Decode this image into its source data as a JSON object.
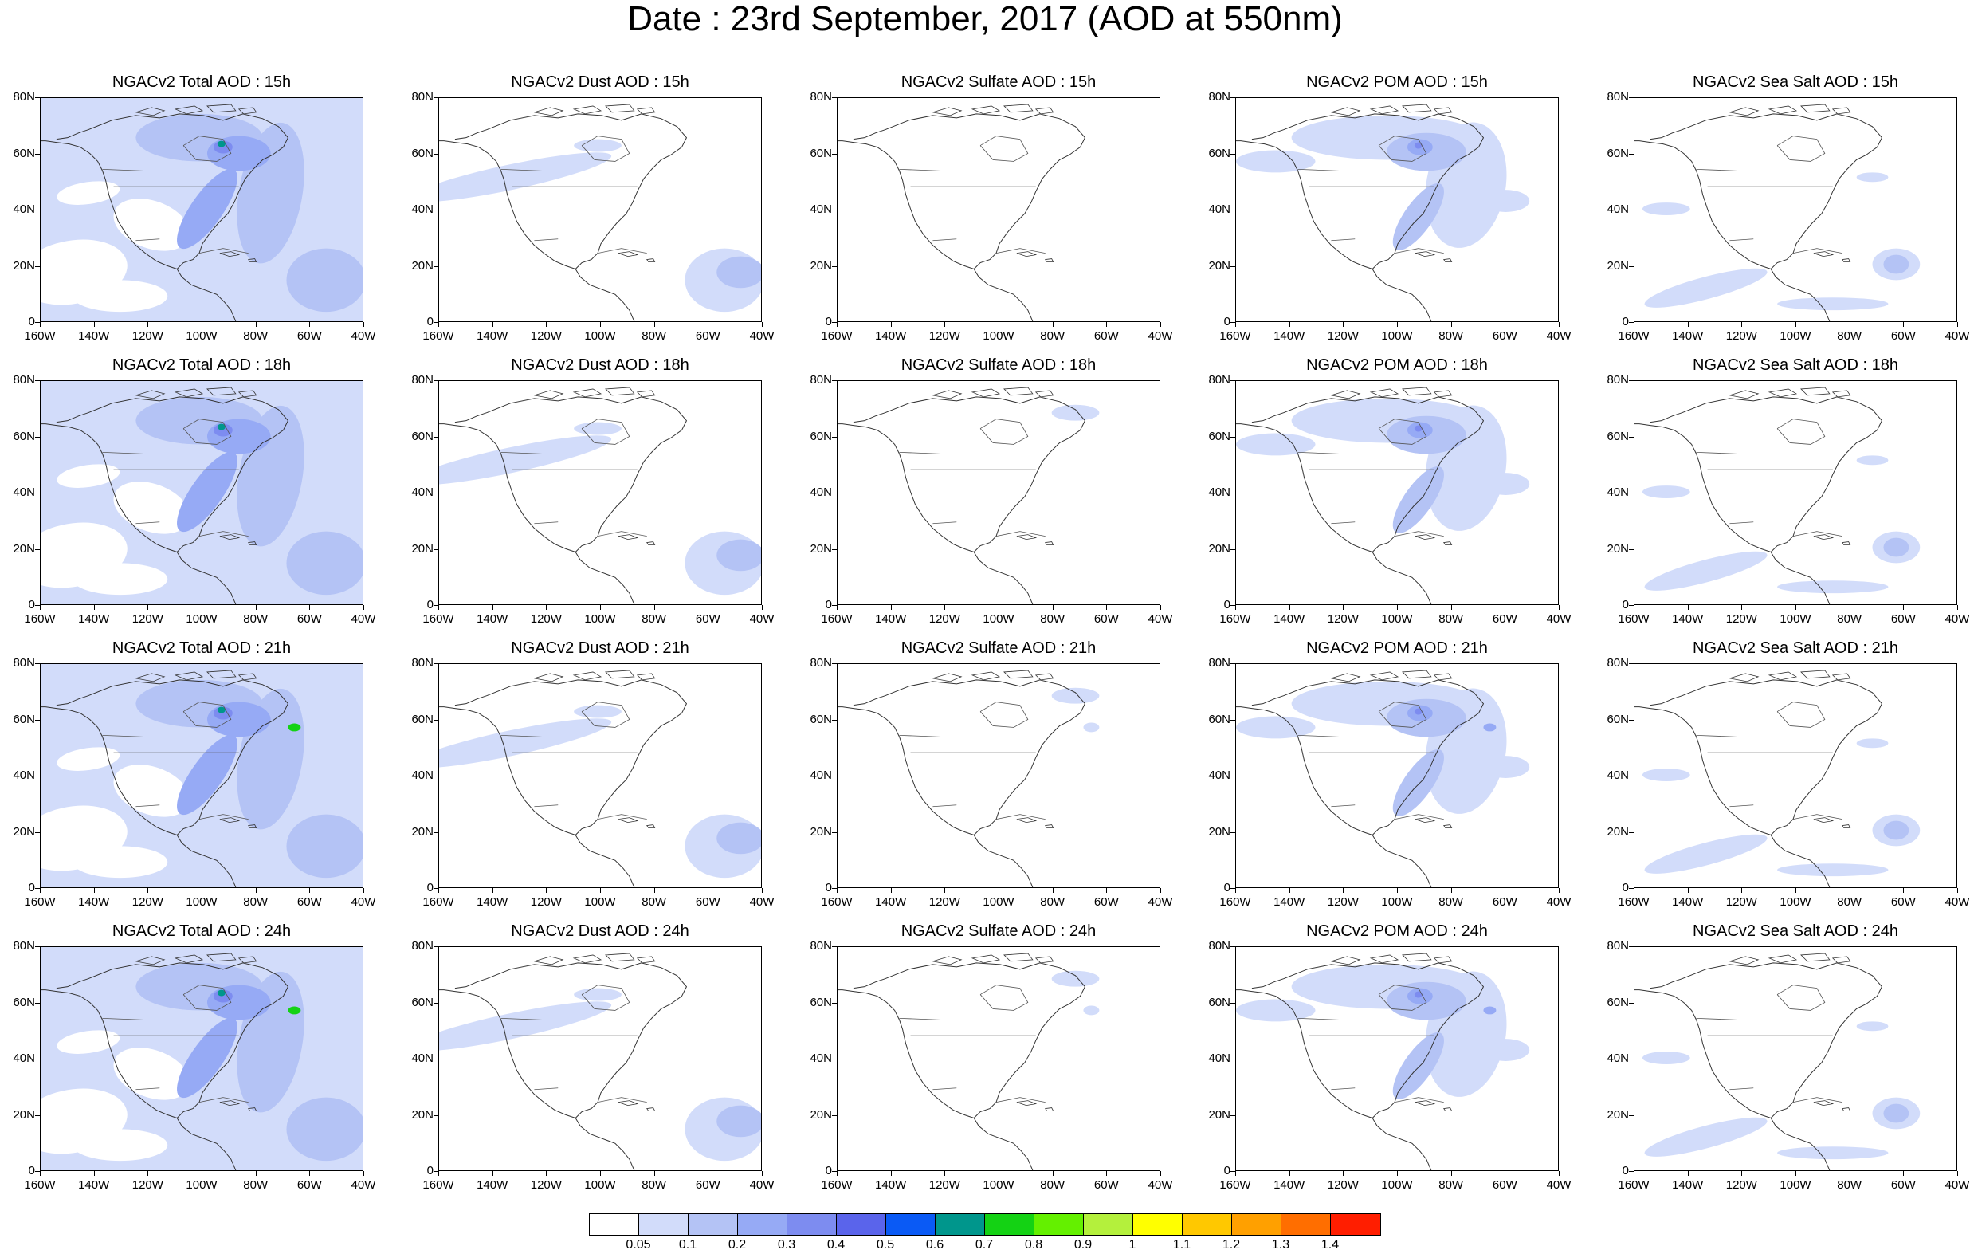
{
  "figure": {
    "title": "Date : 23rd September, 2017 (AOD at 550nm)"
  },
  "axes": {
    "y_ticks": [
      "80N",
      "60N",
      "40N",
      "20N",
      "0"
    ],
    "x_ticks": [
      "160W",
      "140W",
      "120W",
      "100W",
      "80W",
      "60W",
      "40W"
    ],
    "lon_range": [
      -160,
      -40
    ],
    "lat_range": [
      0,
      80
    ]
  },
  "panels": [
    {
      "title": "NGACv2 Total AOD : 15h",
      "species": "total"
    },
    {
      "title": "NGACv2 Dust AOD : 15h",
      "species": "dust"
    },
    {
      "title": "NGACv2 Sulfate AOD : 15h",
      "species": "sulfate"
    },
    {
      "title": "NGACv2 POM AOD : 15h",
      "species": "pom"
    },
    {
      "title": "NGACv2 Sea Salt AOD : 15h",
      "species": "seasalt"
    },
    {
      "title": "NGACv2 Total AOD : 18h",
      "species": "total"
    },
    {
      "title": "NGACv2 Dust AOD : 18h",
      "species": "dust"
    },
    {
      "title": "NGACv2 Sulfate AOD : 18h",
      "species": "sulfate"
    },
    {
      "title": "NGACv2 POM AOD : 18h",
      "species": "pom"
    },
    {
      "title": "NGACv2 Sea Salt AOD : 18h",
      "species": "seasalt"
    },
    {
      "title": "NGACv2 Total AOD : 21h",
      "species": "total"
    },
    {
      "title": "NGACv2 Dust AOD : 21h",
      "species": "dust"
    },
    {
      "title": "NGACv2 Sulfate AOD : 21h",
      "species": "sulfate"
    },
    {
      "title": "NGACv2 POM AOD : 21h",
      "species": "pom"
    },
    {
      "title": "NGACv2 Sea Salt AOD : 21h",
      "species": "seasalt"
    },
    {
      "title": "NGACv2 Total AOD : 24h",
      "species": "total"
    },
    {
      "title": "NGACv2 Dust AOD : 24h",
      "species": "dust"
    },
    {
      "title": "NGACv2 Sulfate AOD : 24h",
      "species": "sulfate"
    },
    {
      "title": "NGACv2 POM AOD : 24h",
      "species": "pom"
    },
    {
      "title": "NGACv2 Sea Salt  AOD : 24h",
      "species": "seasalt"
    }
  ],
  "colorbar": {
    "levels": [
      "0.05",
      "0.1",
      "0.2",
      "0.3",
      "0.4",
      "0.5",
      "0.6",
      "0.7",
      "0.8",
      "0.9",
      "1",
      "1.1",
      "1.2",
      "1.3",
      "1.4"
    ],
    "colors": [
      "#ffffff",
      "#d2dcfa",
      "#b4c3f5",
      "#96aaf5",
      "#7d8cf0",
      "#5a64eb",
      "#0a5af5",
      "#00968c",
      "#14d214",
      "#64f000",
      "#b4f03c",
      "#ffff00",
      "#ffc800",
      "#ffa000",
      "#ff6e00",
      "#ff1e00"
    ]
  }
}
